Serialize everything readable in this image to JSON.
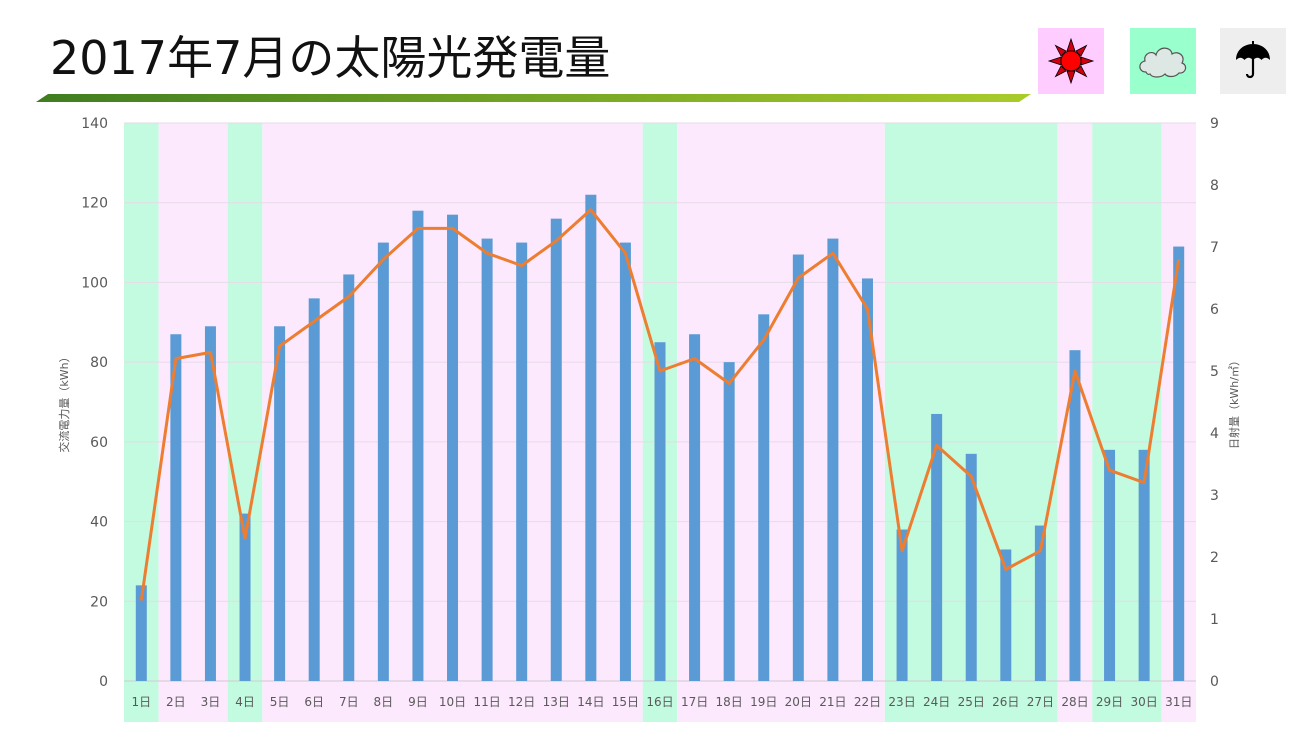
{
  "title": "2017年7月の太陽光発電量",
  "legend": {
    "sunny_color": "#ffccff",
    "cloudy_color": "#99ffcc",
    "rainy_color": "#eeeeee",
    "sunny_icon": "sun-icon",
    "cloudy_icon": "cloud-icon",
    "rainy_icon": "umbrella-icon"
  },
  "colors": {
    "bar": "#5b9bd5",
    "line": "#ed7d31",
    "band_sunny": "#fde9fd",
    "band_cloudy": "#c3fbe1",
    "axis_text": "#595959"
  },
  "chart_data": {
    "type": "bar",
    "categories": [
      "1日",
      "2日",
      "3日",
      "4日",
      "5日",
      "6日",
      "7日",
      "8日",
      "9日",
      "10日",
      "11日",
      "12日",
      "13日",
      "14日",
      "15日",
      "16日",
      "17日",
      "18日",
      "19日",
      "20日",
      "21日",
      "22日",
      "23日",
      "24日",
      "25日",
      "26日",
      "27日",
      "28日",
      "29日",
      "30日",
      "31日"
    ],
    "series": [
      {
        "type": "bar",
        "axis": "left",
        "values": [
          24,
          87,
          89,
          42,
          89,
          96,
          102,
          110,
          118,
          117,
          111,
          110,
          116,
          122,
          110,
          85,
          87,
          80,
          92,
          107,
          111,
          101,
          38,
          67,
          57,
          33,
          39,
          83,
          58,
          58,
          109
        ]
      },
      {
        "type": "line",
        "axis": "right",
        "values": [
          1.3,
          5.2,
          5.3,
          2.3,
          5.4,
          5.8,
          6.2,
          6.8,
          7.3,
          7.3,
          6.9,
          6.7,
          7.1,
          7.6,
          6.9,
          5.0,
          5.2,
          4.8,
          5.5,
          6.5,
          6.9,
          6.0,
          2.1,
          3.8,
          3.3,
          1.8,
          2.1,
          5.0,
          3.4,
          3.2,
          6.8
        ]
      }
    ],
    "weather": [
      "cloudy",
      "sunny",
      "sunny",
      "cloudy",
      "sunny",
      "sunny",
      "sunny",
      "sunny",
      "sunny",
      "sunny",
      "sunny",
      "sunny",
      "sunny",
      "sunny",
      "sunny",
      "cloudy",
      "sunny",
      "sunny",
      "sunny",
      "sunny",
      "sunny",
      "sunny",
      "cloudy",
      "cloudy",
      "cloudy",
      "cloudy",
      "cloudy",
      "sunny",
      "cloudy",
      "cloudy",
      "sunny"
    ],
    "ylabel": "交流電力量（kWh）",
    "y2label": "日射量（kWh/㎡）",
    "ylim": [
      0,
      140
    ],
    "y2lim": [
      0,
      9
    ],
    "yticks": [
      "0",
      "20",
      "40",
      "60",
      "80",
      "100",
      "120",
      "140"
    ],
    "y2ticks": [
      "0",
      "1",
      "2",
      "3",
      "4",
      "5",
      "6",
      "7",
      "8",
      "9"
    ],
    "grid": true
  }
}
